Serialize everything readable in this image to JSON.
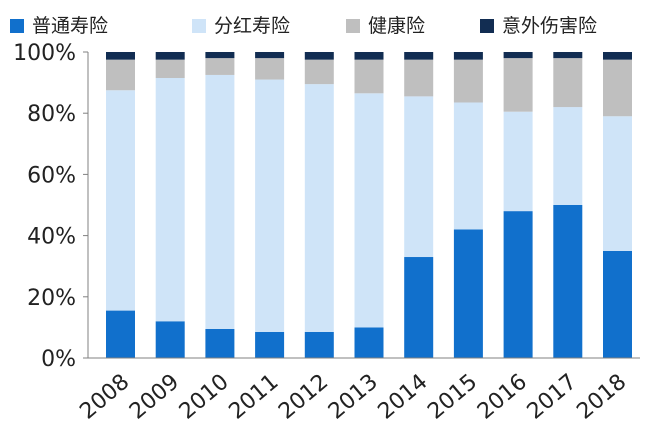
{
  "chart_data": {
    "type": "bar",
    "stacked": true,
    "categories": [
      "2008",
      "2009",
      "2010",
      "2011",
      "2012",
      "2013",
      "2014",
      "2015",
      "2016",
      "2017",
      "2018"
    ],
    "series": [
      {
        "name": "普通寿险",
        "color": "#1170CC",
        "values": [
          15.5,
          12.0,
          9.5,
          8.5,
          8.5,
          10.0,
          33.0,
          42.0,
          48.0,
          50.0,
          35.0
        ]
      },
      {
        "name": "分红寿险",
        "color": "#CFE4F8",
        "values": [
          72.0,
          79.5,
          83.0,
          82.5,
          81.0,
          76.5,
          52.5,
          41.5,
          32.5,
          32.0,
          44.0
        ]
      },
      {
        "name": "健康险",
        "color": "#BFBFBF",
        "values": [
          10.0,
          6.0,
          5.5,
          7.0,
          8.0,
          11.0,
          12.0,
          14.0,
          17.5,
          16.0,
          18.5
        ]
      },
      {
        "name": "意外伤害险",
        "color": "#122D52",
        "values": [
          2.5,
          2.5,
          2.0,
          2.0,
          2.5,
          2.5,
          2.5,
          2.5,
          2.0,
          2.0,
          2.5
        ]
      }
    ],
    "y_ticks": [
      "0%",
      "20%",
      "40%",
      "60%",
      "80%",
      "100%"
    ],
    "ylim": [
      0,
      100
    ],
    "legend_position": "top",
    "grid": false
  }
}
